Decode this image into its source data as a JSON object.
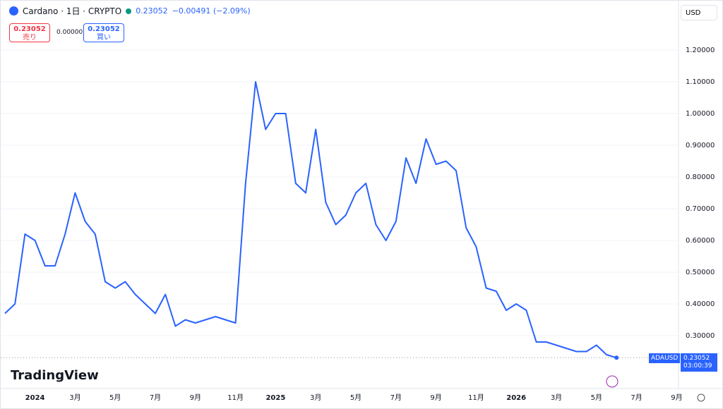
{
  "header": {
    "symbol": "Cardano · 1日 · CRYPTO",
    "price": "0.23052",
    "change": "−0.00491 (−2.09%)",
    "sell_price": "0.23052",
    "sell": "売り",
    "spread": "0.00000",
    "buy_price": "0.23052",
    "buy": "買い",
    "currency": "USD",
    "brand": "TradingView",
    "ticker": "ADAUSD",
    "last": "0.23052",
    "countdown": "03:00:39"
  },
  "chart_data": {
    "type": "line",
    "color": "#2962ff",
    "categories": [
      null,
      null,
      null,
      "2024",
      null,
      null,
      null,
      "3月",
      null,
      null,
      null,
      "5月",
      null,
      null,
      null,
      "7月",
      null,
      null,
      null,
      "9月",
      null,
      null,
      null,
      "11月",
      null,
      null,
      null,
      "2025",
      null,
      null,
      null,
      "3月",
      null,
      null,
      null,
      "5月",
      null,
      null,
      null,
      "7月",
      null,
      null,
      null,
      "9月",
      null,
      null,
      null,
      "11月",
      null,
      null,
      null,
      "2026",
      null,
      null,
      null,
      "3月",
      null,
      null,
      null,
      "5月",
      null,
      null,
      null,
      "7月",
      null,
      null,
      null,
      "9月"
    ],
    "values": [
      0.37,
      0.4,
      0.62,
      0.6,
      0.52,
      0.52,
      0.62,
      0.75,
      0.66,
      0.62,
      0.47,
      0.45,
      0.47,
      0.43,
      0.4,
      0.37,
      0.43,
      0.33,
      0.35,
      0.34,
      0.35,
      0.36,
      0.35,
      0.34,
      0.78,
      1.1,
      0.95,
      1.0,
      1.0,
      0.78,
      0.75,
      0.95,
      0.72,
      0.65,
      0.68,
      0.75,
      0.78,
      0.65,
      0.6,
      0.66,
      0.86,
      0.78,
      0.92,
      0.84,
      0.85,
      0.82,
      0.64,
      0.58,
      0.45,
      0.44,
      0.38,
      0.4,
      0.38,
      0.28,
      0.28,
      0.27,
      0.26,
      0.25,
      0.25,
      0.27,
      0.24,
      0.23052,
      null,
      null,
      null,
      null,
      null,
      null
    ],
    "ylim": [
      0.15,
      1.35
    ],
    "yticks": [
      {
        "value": 0.3,
        "label": "0.30000"
      },
      {
        "value": 0.4,
        "label": "0.40000"
      },
      {
        "value": 0.5,
        "label": "0.50000"
      },
      {
        "value": 0.6,
        "label": "0.60000"
      },
      {
        "value": 0.7,
        "label": "0.70000"
      },
      {
        "value": 0.8,
        "label": "0.80000"
      },
      {
        "value": 0.9,
        "label": "0.90000"
      },
      {
        "value": 1.0,
        "label": "1.00000"
      },
      {
        "value": 1.1,
        "label": "1.10000"
      },
      {
        "value": 1.2,
        "label": "1.20000"
      }
    ],
    "grid": true
  }
}
